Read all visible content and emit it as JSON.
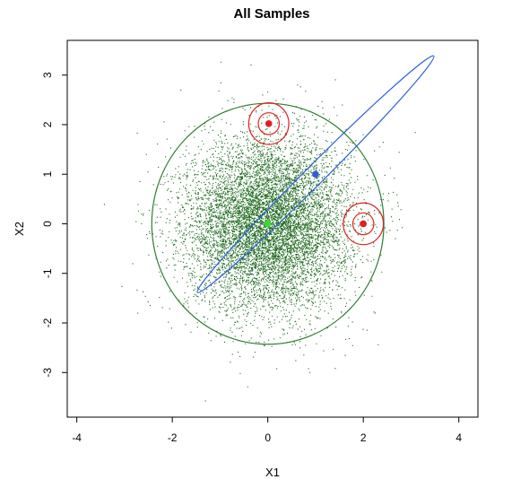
{
  "chart_data": {
    "type": "scatter",
    "title": "All Samples",
    "xlabel": "X1",
    "ylabel": "X2",
    "xlim": [
      -4.2,
      4.4
    ],
    "ylim": [
      -3.9,
      3.7
    ],
    "xticks": [
      -4,
      -2,
      0,
      2,
      4
    ],
    "yticks": [
      -3,
      -2,
      -1,
      0,
      1,
      2,
      3
    ],
    "colors": {
      "scatter": "#1f6b1f",
      "outer_circle": "#2e7d32",
      "center_point": "#33dd33",
      "blue": "#2b5fd9",
      "red": "#e02020"
    },
    "scatter": {
      "center": [
        0,
        0
      ],
      "sd": 0.85,
      "n_points": 9000,
      "seed": 12345
    },
    "points": [
      {
        "name": "green-center",
        "x": 0,
        "y": 0,
        "color": "#33dd33"
      },
      {
        "name": "blue-center",
        "x": 1.0,
        "y": 1.0,
        "color": "#2b5fd9"
      },
      {
        "name": "red-upper",
        "x": 0.02,
        "y": 2.02,
        "color": "#e02020"
      },
      {
        "name": "red-lower",
        "x": 2.0,
        "y": 0.0,
        "color": "#e02020"
      }
    ],
    "ellipses": [
      {
        "name": "outer-green-circle",
        "cx": 0,
        "cy": 0,
        "rx": 2.43,
        "ry": 2.43,
        "rotate": 0,
        "color": "#2e7d32"
      },
      {
        "name": "blue-ellipse",
        "cx": 1.0,
        "cy": 1.0,
        "rx": 3.5,
        "ry": 0.2,
        "rotate": -45,
        "color": "#2b5fd9"
      },
      {
        "name": "red-outer-circle-upper",
        "cx": 0.02,
        "cy": 2.02,
        "rx": 0.42,
        "ry": 0.42,
        "rotate": 0,
        "color": "#e02020"
      },
      {
        "name": "red-inner-circle-upper",
        "cx": 0.02,
        "cy": 2.02,
        "rx": 0.22,
        "ry": 0.22,
        "rotate": 0,
        "color": "#e02020"
      },
      {
        "name": "red-outer-circle-lower",
        "cx": 2.0,
        "cy": 0.0,
        "rx": 0.42,
        "ry": 0.42,
        "rotate": 0,
        "color": "#e02020"
      },
      {
        "name": "red-inner-circle-lower",
        "cx": 2.0,
        "cy": 0.0,
        "rx": 0.22,
        "ry": 0.22,
        "rotate": 0,
        "color": "#e02020"
      }
    ]
  }
}
